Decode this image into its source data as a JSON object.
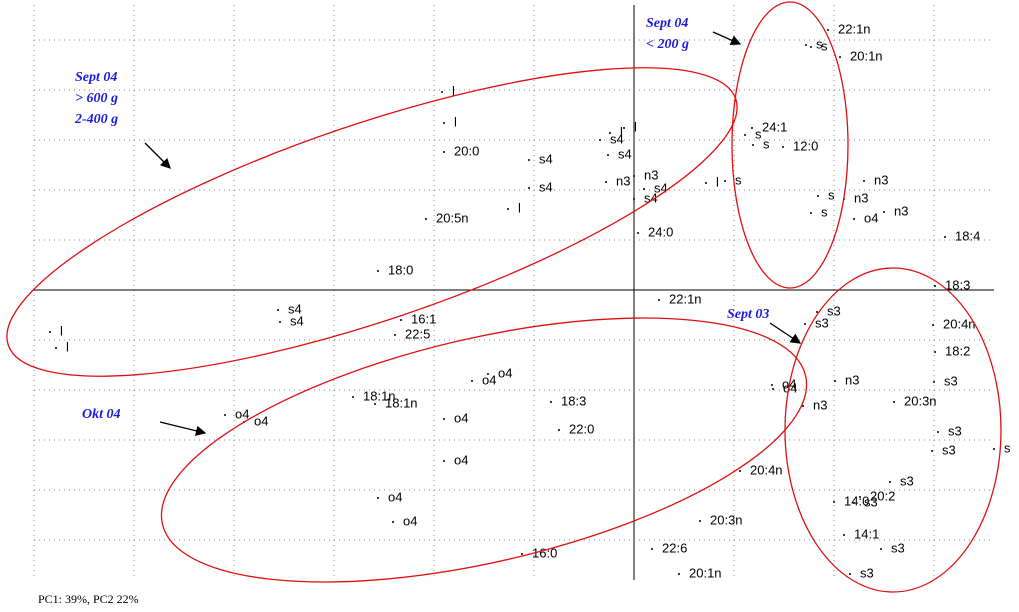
{
  "chart_data": {
    "type": "scatter",
    "x": [
      1.94,
      1.72,
      1.77,
      2.06,
      1.18,
      1.11,
      1.19,
      1.49,
      1.84,
      1.77,
      2.3,
      2.1,
      2.2,
      2.5,
      3.11,
      3.01,
      -1.92,
      -1.9,
      -1.9,
      -1.05,
      -0.34,
      -0.24,
      -0.1,
      -0.26,
      -1.05,
      0.0,
      -0.28,
      0.1,
      0.0,
      0.72,
      0.91,
      -1.26,
      -2.08,
      0.04,
      -2.56,
      0.25,
      1.83,
      1.71,
      2.99,
      3.01,
      -3.56,
      -3.54,
      -2.33,
      -2.39,
      -5.84,
      -5.78,
      -1.62,
      -1.46,
      -2.81,
      -2.59,
      -1.9,
      -0.83,
      -0.75,
      -4.09,
      -3.9,
      -1.9,
      -2.56,
      -2.41,
      -1.12,
      1.38,
      1.39,
      2.01,
      1.69,
      3.0,
      2.6,
      3.04,
      2.98,
      3.6,
      1.06,
      2.56,
      2.0,
      2.26,
      2.2,
      0.66,
      2.1,
      2.47,
      0.18,
      2.16,
      0.45
    ],
    "values": [
      2.6,
      2.45,
      2.43,
      2.33,
      1.62,
      1.55,
      1.45,
      1.43,
      0.94,
      0.77,
      1.09,
      0.91,
      0.71,
      0.78,
      0.53,
      0.04,
      1.98,
      1.67,
      1.38,
      1.3,
      1.5,
      1.57,
      1.62,
      1.35,
      1.02,
      1.14,
      1.08,
      1.01,
      0.91,
      1.07,
      1.09,
      0.81,
      0.71,
      0.57,
      0.19,
      -0.1,
      -0.22,
      -0.34,
      -0.35,
      -0.62,
      -0.2,
      -0.32,
      -0.3,
      -0.45,
      -0.42,
      -0.58,
      -0.91,
      -0.84,
      -1.07,
      -1.14,
      -1.29,
      -1.12,
      -1.4,
      -1.25,
      -1.32,
      -1.71,
      -2.08,
      -2.32,
      -2.64,
      -0.95,
      -0.99,
      -0.91,
      -1.16,
      -0.92,
      -1.12,
      -1.42,
      -1.61,
      -1.59,
      -1.81,
      -1.92,
      -2.12,
      -2.07,
      -2.13,
      -2.31,
      -2.45,
      -2.59,
      -2.59,
      -2.84,
      -2.84
    ],
    "point_labels": [
      "22:1n",
      "s",
      "s",
      "20:1n",
      "24:1",
      "s",
      "s",
      "12:0",
      "s",
      "s",
      "n3",
      "n3",
      "o4",
      "n3",
      "18:4",
      "18:3",
      "l",
      "l",
      "20:0",
      "s4",
      "s4",
      "l",
      "l",
      "s4",
      "s4",
      "n3",
      "n3",
      "s4",
      "s4",
      "l",
      "s",
      "l",
      "20:5n",
      "24:0",
      "18:0",
      "22:1n",
      "s3",
      "s3",
      "20:4n",
      "18:2",
      "s4",
      "s4",
      "16:1",
      "22:5",
      "l",
      "l",
      "o4",
      "o4",
      "18:1n",
      "18:1n",
      "o4",
      "18:3",
      "22:0",
      "o4",
      "o4",
      "o4",
      "o4",
      "o4",
      "16:0",
      "o4",
      "o4",
      "n3",
      "n3",
      "s3",
      "20:3n",
      "s3",
      "s3",
      "s",
      "20:4n",
      "s3",
      "14:0",
      "20:2",
      "s3",
      "20:3n",
      "14:1",
      "s3",
      "22:6",
      "s3",
      "20:1n"
    ],
    "xlim": [
      -6,
      3.6
    ],
    "ylim": [
      -2.9,
      2.85
    ],
    "xticks": [
      -6,
      -5,
      -4,
      -3,
      -2,
      -1,
      0,
      1,
      2,
      3
    ],
    "yticks": [
      -2.5,
      -2,
      -1.5,
      -1,
      -0.5,
      0,
      0.5,
      1,
      1.5,
      2,
      2.5
    ],
    "grid": true,
    "color": "#000000",
    "annotations": [
      [
        "Sept 04",
        "> 600 g",
        "2-400 g"
      ],
      [
        "Sept 04",
        "< 200 g"
      ],
      [
        "Sept 03"
      ],
      [
        "Okt 04"
      ]
    ],
    "footnote": "PC1: 39%, PC2 22%"
  }
}
